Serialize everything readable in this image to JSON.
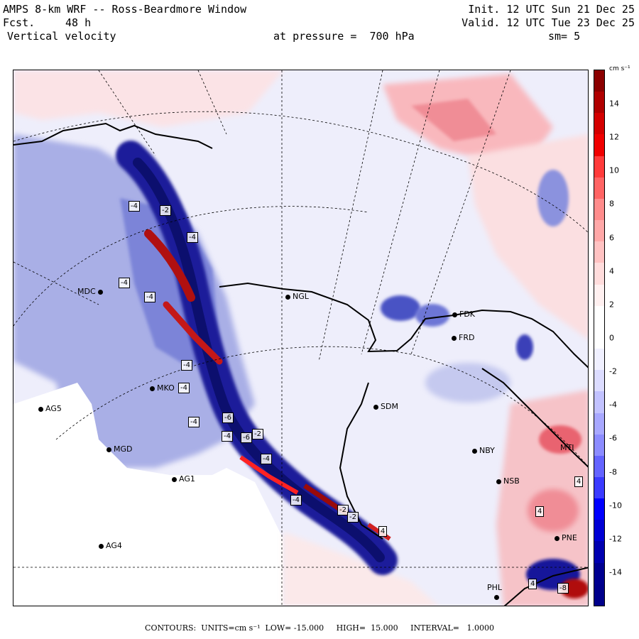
{
  "header": {
    "title": "AMPS 8-km WRF -- Ross-Beardmore Window",
    "init": "Init. 12 UTC Sun 21 Dec 25",
    "fcst_label": "Fcst.",
    "fcst_value": "48 h",
    "valid": "Valid. 12 UTC Tue 23 Dec 25",
    "field": "Vertical velocity",
    "pressure": "at pressure =  700 hPa",
    "smoothing": "sm= 5"
  },
  "stations": [
    {
      "name": "MDC"
    },
    {
      "name": "NGL"
    },
    {
      "name": "FDK"
    },
    {
      "name": "FRD"
    },
    {
      "name": "MKO"
    },
    {
      "name": "AG5"
    },
    {
      "name": "SDM"
    },
    {
      "name": "MGD"
    },
    {
      "name": "NBY"
    },
    {
      "name": "AG1"
    },
    {
      "name": "NSB"
    },
    {
      "name": "AG4"
    },
    {
      "name": "PNE"
    },
    {
      "name": "PHL"
    },
    {
      "name": "MTI"
    }
  ],
  "contour_labels": [
    "-4",
    "-4",
    "-4",
    "-4",
    "-4",
    "-4",
    "-4",
    "-2",
    "-4",
    "-2",
    "4",
    "4",
    "4",
    "4",
    "-6",
    "-2",
    "-8",
    "-4",
    "-6",
    "-4",
    "-2"
  ],
  "colorbar": {
    "units_label": "cm s⁻¹",
    "ticks": [
      "14",
      "12",
      "10",
      "8",
      "6",
      "4",
      "2",
      "0",
      "-2",
      "-4",
      "-6",
      "-8",
      "-10",
      "-12",
      "-14"
    ],
    "colors": [
      "#8b0000",
      "#b00000",
      "#d40000",
      "#f00000",
      "#ff3b3b",
      "#ff6464",
      "#ff8c8c",
      "#ffa8a8",
      "#ffc2c2",
      "#ffdcdc",
      "#fff0f0",
      "#ffffff",
      "#ffffff",
      "#f0f0ff",
      "#dcdcff",
      "#c2c2ff",
      "#a8a8ff",
      "#8c8cff",
      "#6464ff",
      "#3b3bff",
      "#0000ff",
      "#0000d4",
      "#0000b0",
      "#000090",
      "#00008b"
    ]
  },
  "footer": {
    "contours_label": "CONTOURS:",
    "units_label": "UNITS=cm s⁻¹",
    "low_label": "LOW= -15.000",
    "high_label": "HIGH=  15.000",
    "interval_label": "INTERVAL=   1.0000"
  },
  "style": {
    "background_field": "#ecedfb",
    "snow_region": "#ffffff"
  }
}
